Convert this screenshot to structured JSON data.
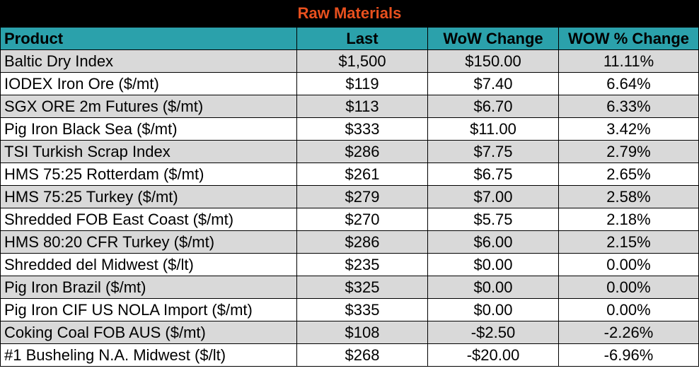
{
  "title": "Raw Materials",
  "colors": {
    "title_background": "#000000",
    "title_text": "#e8501e",
    "header_background": "#2ba1ab",
    "row_shaded": "#d9d9d9",
    "row_plain": "#ffffff"
  },
  "columns": {
    "product": "Product",
    "last": "Last",
    "wow_change": "WoW Change",
    "wow_pct_change": "WOW % Change"
  },
  "rows": [
    {
      "product": "Baltic Dry Index",
      "last": "$1,500",
      "wow_change": "$150.00",
      "wow_pct_change": "11.11%"
    },
    {
      "product": "IODEX  Iron Ore ($/mt)",
      "last": "$119",
      "wow_change": "$7.40",
      "wow_pct_change": "6.64%"
    },
    {
      "product": "SGX ORE 2m Futures ($/mt)",
      "last": "$113",
      "wow_change": "$6.70",
      "wow_pct_change": "6.33%"
    },
    {
      "product": "Pig Iron Black Sea ($/mt)",
      "last": "$333",
      "wow_change": "$11.00",
      "wow_pct_change": "3.42%"
    },
    {
      "product": "TSI Turkish Scrap Index",
      "last": "$286",
      "wow_change": "$7.75",
      "wow_pct_change": "2.79%"
    },
    {
      "product": "HMS 75:25 Rotterdam ($/mt)",
      "last": "$261",
      "wow_change": "$6.75",
      "wow_pct_change": "2.65%"
    },
    {
      "product": "HMS 75:25 Turkey ($/mt)",
      "last": "$279",
      "wow_change": "$7.00",
      "wow_pct_change": "2.58%"
    },
    {
      "product": "Shredded FOB East Coast ($/mt)",
      "last": "$270",
      "wow_change": "$5.75",
      "wow_pct_change": "2.18%"
    },
    {
      "product": "HMS 80:20 CFR Turkey ($/mt)",
      "last": "$286",
      "wow_change": "$6.00",
      "wow_pct_change": "2.15%"
    },
    {
      "product": "Shredded del  Midwest ($/lt)",
      "last": "$235",
      "wow_change": "$0.00",
      "wow_pct_change": "0.00%"
    },
    {
      "product": "Pig Iron Brazil ($/mt)",
      "last": "$325",
      "wow_change": "$0.00",
      "wow_pct_change": "0.00%"
    },
    {
      "product": "Pig Iron CIF US NOLA Import ($/mt)",
      "last": "$335",
      "wow_change": "$0.00",
      "wow_pct_change": "0.00%"
    },
    {
      "product": "Coking Coal FOB AUS ($/mt)",
      "last": "$108",
      "wow_change": "-$2.50",
      "wow_pct_change": "-2.26%"
    },
    {
      "product": "#1 Busheling N.A. Midwest ($/lt)",
      "last": "$268",
      "wow_change": "-$20.00",
      "wow_pct_change": "-6.96%"
    }
  ]
}
